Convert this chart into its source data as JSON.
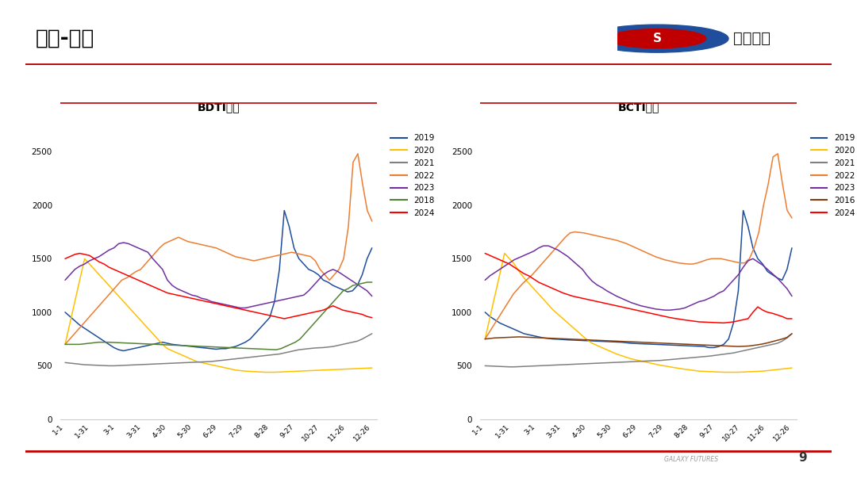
{
  "title_main": "运价-油轮",
  "chart1_title": "BDTI指数",
  "chart2_title": "BCTI指数",
  "x_labels": [
    "1-1",
    "1-31",
    "3-1",
    "3-31",
    "4-30",
    "5-30",
    "6-29",
    "7-29",
    "8-28",
    "9-27",
    "10-27",
    "11-26",
    "12-26"
  ],
  "ylim": [
    0,
    2700
  ],
  "yticks": [
    0,
    500,
    1000,
    1500,
    2000,
    2500
  ],
  "bdti": {
    "2019": [
      1000,
      960,
      920,
      880,
      850,
      820,
      790,
      760,
      730,
      700,
      670,
      650,
      640,
      650,
      660,
      670,
      680,
      690,
      700,
      710,
      720,
      710,
      700,
      695,
      690,
      685,
      680,
      675,
      670,
      665,
      660,
      655,
      660,
      660,
      670,
      680,
      700,
      720,
      750,
      800,
      850,
      900,
      950,
      1100,
      1400,
      1950,
      1800,
      1600,
      1500,
      1450,
      1400,
      1380,
      1350,
      1300,
      1280,
      1250,
      1230,
      1210,
      1190,
      1200,
      1250,
      1350,
      1500,
      1600
    ],
    "2020": [
      700,
      900,
      1100,
      1300,
      1500,
      1450,
      1400,
      1350,
      1300,
      1250,
      1200,
      1150,
      1100,
      1050,
      1000,
      950,
      900,
      850,
      800,
      750,
      700,
      660,
      640,
      620,
      600,
      580,
      560,
      540,
      530,
      520,
      510,
      500,
      490,
      480,
      470,
      460,
      455,
      450,
      448,
      445,
      443,
      440,
      440,
      440,
      442,
      444,
      446,
      448,
      450,
      452,
      454,
      456,
      458,
      460,
      462,
      464,
      466,
      468,
      470,
      472,
      474,
      476,
      478,
      480
    ],
    "2021": [
      530,
      525,
      520,
      515,
      510,
      508,
      506,
      504,
      502,
      500,
      500,
      502,
      504,
      506,
      508,
      510,
      512,
      514,
      516,
      518,
      520,
      522,
      524,
      526,
      528,
      530,
      532,
      534,
      536,
      538,
      540,
      545,
      550,
      555,
      560,
      565,
      570,
      575,
      580,
      585,
      590,
      595,
      600,
      605,
      610,
      620,
      630,
      640,
      650,
      655,
      660,
      665,
      668,
      670,
      675,
      680,
      690,
      700,
      710,
      720,
      730,
      750,
      775,
      800
    ],
    "2022": [
      700,
      750,
      800,
      850,
      900,
      950,
      1000,
      1050,
      1100,
      1150,
      1200,
      1250,
      1300,
      1320,
      1350,
      1380,
      1400,
      1450,
      1500,
      1550,
      1600,
      1640,
      1660,
      1680,
      1700,
      1680,
      1660,
      1650,
      1640,
      1630,
      1620,
      1610,
      1600,
      1580,
      1560,
      1540,
      1520,
      1510,
      1500,
      1490,
      1480,
      1490,
      1500,
      1510,
      1520,
      1530,
      1540,
      1550,
      1560,
      1550,
      1540,
      1530,
      1520,
      1480,
      1400,
      1350,
      1300,
      1350,
      1400,
      1500,
      1800,
      2400,
      2480,
      2200,
      1950,
      1850
    ],
    "2023": [
      1300,
      1350,
      1400,
      1430,
      1450,
      1480,
      1500,
      1520,
      1550,
      1580,
      1600,
      1640,
      1650,
      1640,
      1620,
      1600,
      1580,
      1560,
      1500,
      1450,
      1400,
      1300,
      1250,
      1220,
      1200,
      1180,
      1160,
      1150,
      1130,
      1120,
      1100,
      1090,
      1080,
      1070,
      1060,
      1050,
      1040,
      1040,
      1050,
      1060,
      1070,
      1080,
      1090,
      1100,
      1110,
      1120,
      1130,
      1140,
      1150,
      1160,
      1200,
      1250,
      1300,
      1350,
      1380,
      1400,
      1380,
      1350,
      1320,
      1290,
      1260,
      1230,
      1200,
      1150
    ],
    "2018": [
      700,
      700,
      700,
      700,
      705,
      710,
      715,
      720,
      720,
      720,
      718,
      716,
      714,
      712,
      710,
      708,
      706,
      704,
      702,
      700,
      698,
      696,
      694,
      692,
      690,
      688,
      686,
      684,
      682,
      680,
      678,
      676,
      674,
      672,
      670,
      668,
      666,
      664,
      662,
      660,
      658,
      656,
      654,
      652,
      650,
      660,
      680,
      700,
      720,
      750,
      800,
      850,
      900,
      950,
      1000,
      1050,
      1100,
      1150,
      1200,
      1220,
      1250,
      1260,
      1270,
      1280,
      1280
    ],
    "2024": [
      1500,
      1520,
      1540,
      1550,
      1540,
      1530,
      1500,
      1470,
      1450,
      1420,
      1400,
      1380,
      1360,
      1340,
      1320,
      1300,
      1280,
      1260,
      1240,
      1220,
      1200,
      1180,
      1170,
      1160,
      1150,
      1140,
      1130,
      1120,
      1110,
      1100,
      1090,
      1080,
      1070,
      1060,
      1050,
      1040,
      1030,
      1020,
      1010,
      1000,
      990,
      980,
      970,
      960,
      950,
      940,
      950,
      960,
      970,
      980,
      990,
      1000,
      1010,
      1020,
      1040,
      1060,
      1040,
      1020,
      1010,
      1000,
      990,
      980,
      960,
      950
    ]
  },
  "bcti": {
    "2019": [
      1000,
      960,
      930,
      900,
      880,
      860,
      840,
      820,
      800,
      790,
      780,
      770,
      760,
      755,
      750,
      748,
      745,
      742,
      740,
      738,
      736,
      734,
      732,
      730,
      728,
      726,
      724,
      722,
      720,
      715,
      710,
      708,
      706,
      704,
      702,
      700,
      698,
      696,
      694,
      692,
      690,
      688,
      686,
      684,
      682,
      680,
      670,
      670,
      680,
      700,
      750,
      900,
      1200,
      1950,
      1800,
      1600,
      1500,
      1450,
      1380,
      1350,
      1320,
      1300,
      1400,
      1600
    ],
    "2020": [
      750,
      950,
      1150,
      1350,
      1550,
      1500,
      1450,
      1380,
      1320,
      1270,
      1220,
      1170,
      1120,
      1070,
      1020,
      980,
      940,
      900,
      860,
      820,
      780,
      740,
      710,
      690,
      670,
      650,
      630,
      610,
      595,
      580,
      565,
      555,
      545,
      535,
      525,
      515,
      505,
      498,
      490,
      482,
      475,
      468,
      462,
      456,
      450,
      448,
      446,
      444,
      442,
      440,
      440,
      440,
      440,
      442,
      444,
      446,
      448,
      450,
      455,
      460,
      465,
      470,
      475,
      480
    ],
    "2021": [
      500,
      498,
      496,
      494,
      492,
      490,
      490,
      492,
      494,
      496,
      498,
      500,
      502,
      504,
      506,
      508,
      510,
      512,
      514,
      516,
      518,
      520,
      522,
      524,
      526,
      528,
      530,
      532,
      534,
      536,
      538,
      540,
      542,
      544,
      546,
      548,
      550,
      554,
      558,
      562,
      566,
      570,
      574,
      578,
      582,
      586,
      590,
      596,
      602,
      608,
      614,
      620,
      630,
      640,
      650,
      660,
      670,
      680,
      690,
      700,
      710,
      730,
      760,
      800
    ],
    "2022": [
      750,
      820,
      890,
      960,
      1030,
      1100,
      1170,
      1220,
      1270,
      1310,
      1350,
      1400,
      1450,
      1500,
      1550,
      1600,
      1650,
      1700,
      1740,
      1750,
      1745,
      1740,
      1730,
      1720,
      1710,
      1700,
      1690,
      1680,
      1670,
      1655,
      1640,
      1620,
      1600,
      1580,
      1560,
      1540,
      1520,
      1505,
      1490,
      1480,
      1470,
      1460,
      1455,
      1450,
      1450,
      1460,
      1475,
      1490,
      1500,
      1500,
      1500,
      1490,
      1480,
      1470,
      1460,
      1460,
      1500,
      1600,
      1750,
      2000,
      2200,
      2450,
      2480,
      2200,
      1950,
      1880
    ],
    "2023": [
      1300,
      1340,
      1370,
      1400,
      1430,
      1460,
      1490,
      1510,
      1530,
      1550,
      1570,
      1600,
      1620,
      1620,
      1600,
      1580,
      1550,
      1520,
      1480,
      1440,
      1400,
      1340,
      1290,
      1255,
      1230,
      1200,
      1175,
      1150,
      1130,
      1110,
      1090,
      1075,
      1060,
      1050,
      1040,
      1030,
      1025,
      1020,
      1020,
      1025,
      1030,
      1040,
      1060,
      1080,
      1100,
      1110,
      1130,
      1150,
      1180,
      1200,
      1250,
      1300,
      1350,
      1420,
      1480,
      1500,
      1470,
      1440,
      1400,
      1360,
      1320,
      1270,
      1220,
      1150
    ],
    "2016": [
      750,
      755,
      760,
      762,
      764,
      766,
      768,
      770,
      768,
      766,
      764,
      762,
      760,
      758,
      756,
      754,
      752,
      750,
      748,
      746,
      744,
      742,
      740,
      738,
      736,
      734,
      732,
      730,
      728,
      726,
      724,
      722,
      720,
      718,
      716,
      714,
      712,
      710,
      708,
      706,
      704,
      702,
      700,
      698,
      696,
      694,
      692,
      690,
      688,
      686,
      684,
      682,
      680,
      682,
      684,
      690,
      696,
      704,
      714,
      726,
      738,
      750,
      765,
      800
    ],
    "2024": [
      1550,
      1530,
      1510,
      1490,
      1470,
      1450,
      1420,
      1390,
      1360,
      1340,
      1310,
      1280,
      1260,
      1240,
      1220,
      1200,
      1180,
      1165,
      1150,
      1140,
      1130,
      1120,
      1110,
      1100,
      1090,
      1080,
      1070,
      1060,
      1050,
      1040,
      1030,
      1020,
      1010,
      1000,
      990,
      980,
      970,
      960,
      950,
      942,
      935,
      928,
      922,
      916,
      910,
      908,
      906,
      904,
      902,
      900,
      905,
      910,
      920,
      930,
      940,
      1000,
      1050,
      1020,
      1000,
      990,
      975,
      960,
      940,
      940
    ]
  },
  "bdti_colors": {
    "2019": "#1f4e9c",
    "2020": "#ffc000",
    "2021": "#808080",
    "2022": "#ed7d31",
    "2023": "#7030a0",
    "2018": "#548235",
    "2024": "#ff0000"
  },
  "bcti_colors": {
    "2019": "#1f4e9c",
    "2020": "#ffc000",
    "2021": "#808080",
    "2022": "#ed7d31",
    "2023": "#7030a0",
    "2016": "#843c0c",
    "2024": "#ff0000"
  },
  "background_color": "#ffffff",
  "title_color": "#000000",
  "subtitle_underline_color": "#c00000",
  "footer_line_color": "#c00000",
  "footer_text": "GALAXY FUTURES",
  "page_number": "9"
}
